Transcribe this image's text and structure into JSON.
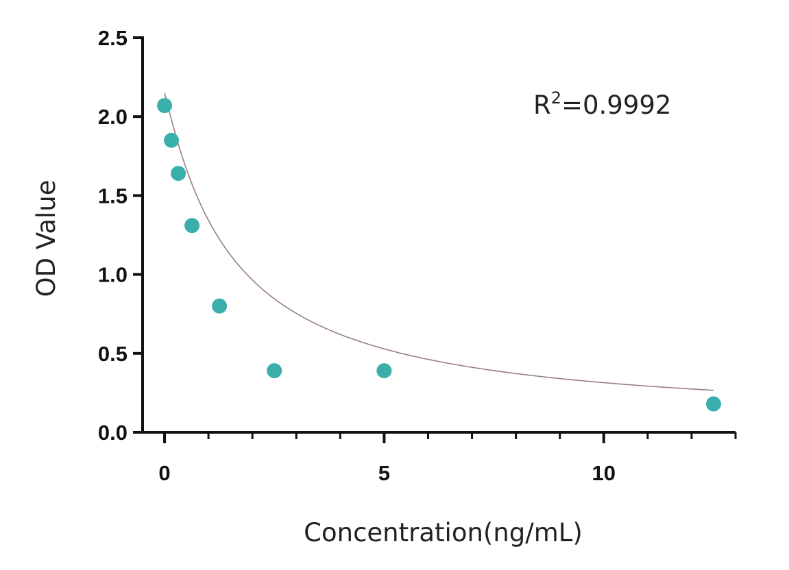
{
  "chart_data": {
    "type": "scatter",
    "xlabel": "Concentration(ng/mL)",
    "ylabel": "OD Value",
    "xlim": [
      -0.5,
      13.0
    ],
    "ylim": [
      0,
      2.5
    ],
    "x_ticks": [
      0,
      5,
      10
    ],
    "y_ticks": [
      "0.0",
      "0.5",
      "1.0",
      "1.5",
      "2.0",
      "2.5"
    ],
    "x_minor_ticks": [
      1,
      2,
      3,
      4,
      6,
      7,
      8,
      9,
      11,
      12,
      13
    ],
    "grid": false,
    "annotation": {
      "base": "R",
      "sup": "2",
      "rest": "=0.9992"
    },
    "series": [
      {
        "x": [
          0,
          0.156,
          0.3125,
          0.625,
          1.25,
          2.5,
          5,
          12.5
        ],
        "y": [
          2.07,
          1.85,
          1.64,
          1.31,
          0.8,
          0.39,
          0.39,
          0.18
        ]
      }
    ],
    "fit_curve": {
      "type": "4PL",
      "color": "#9a7e7e"
    },
    "colors": {
      "points": "#3aafa9",
      "axis": "#111111"
    }
  }
}
